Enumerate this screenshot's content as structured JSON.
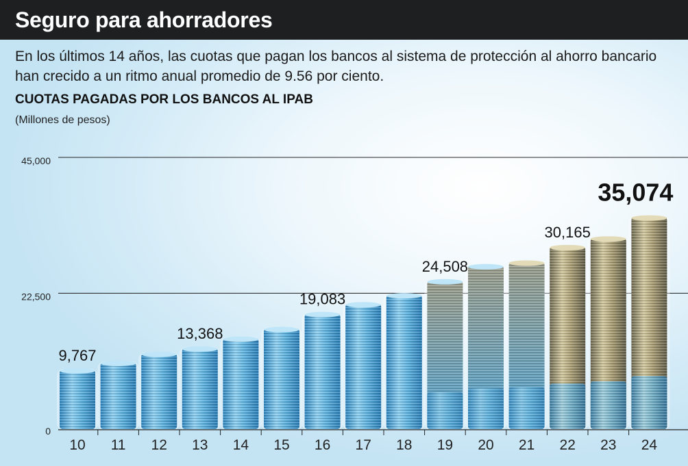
{
  "header": {
    "title": "Seguro para ahorradores",
    "subtitle": "En los últimos 14 años, las cuotas que pagan los bancos al sistema de protección al ahorro bancario han crecido a un ritmo anual promedio de 9.56 por ciento."
  },
  "colors": {
    "header_bg": "#1d1f21",
    "coin_blue": "#5aaedb",
    "coin_gold": "#a89b72"
  },
  "chart_data": {
    "type": "bar",
    "title": "CUOTAS PAGADAS POR LOS BANCOS AL IPAB",
    "ylabel": "(Millones de pesos)",
    "xlabel": "",
    "ylim": [
      0,
      45000
    ],
    "yticks": [
      0,
      22500,
      45000
    ],
    "ytick_labels": [
      "0",
      "22,500",
      "45,000"
    ],
    "categories": [
      "10",
      "11",
      "12",
      "13",
      "14",
      "15",
      "16",
      "17",
      "18",
      "19",
      "20",
      "21",
      "22",
      "23",
      "24"
    ],
    "values": [
      9767,
      11000,
      12500,
      13368,
      15000,
      16600,
      19083,
      20700,
      22200,
      24508,
      27000,
      27600,
      30165,
      31600,
      35074
    ],
    "data_labels": [
      {
        "index": 0,
        "text": "9,767"
      },
      {
        "index": 3,
        "text": "13,368"
      },
      {
        "index": 6,
        "text": "19,083"
      },
      {
        "index": 9,
        "text": "24,508"
      },
      {
        "index": 12,
        "text": "30,165"
      },
      {
        "index": 14,
        "text": "35,074",
        "emphasis": true
      }
    ]
  }
}
